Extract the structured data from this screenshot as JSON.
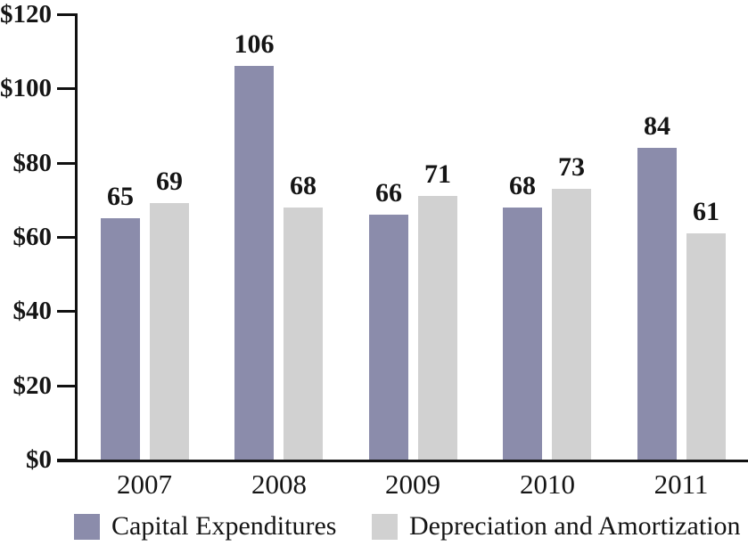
{
  "chart_data": {
    "type": "bar",
    "subtype": "grouped-vertical",
    "categories": [
      "2007",
      "2008",
      "2009",
      "2010",
      "2011"
    ],
    "series": [
      {
        "name": "Capital Expenditures",
        "color": "#8b8cab",
        "values": [
          65,
          106,
          66,
          68,
          84
        ]
      },
      {
        "name": "Depreciation and Amortization",
        "color": "#d1d1d1",
        "values": [
          69,
          68,
          71,
          73,
          61
        ]
      }
    ],
    "title": "",
    "xlabel": "",
    "ylabel": "",
    "ylim": [
      0,
      120
    ],
    "ytick_values": [
      0,
      20,
      40,
      60,
      80,
      100,
      120
    ],
    "ytick_labels": [
      "$0",
      "$20",
      "$40",
      "$60",
      "$80",
      "$100",
      "$120"
    ],
    "currency_prefix": "$",
    "grid": false,
    "bar_labels": true,
    "legend_position": "bottom",
    "axis_color": "#111111",
    "text_color": "#151515",
    "background_color": "#ffffff"
  }
}
